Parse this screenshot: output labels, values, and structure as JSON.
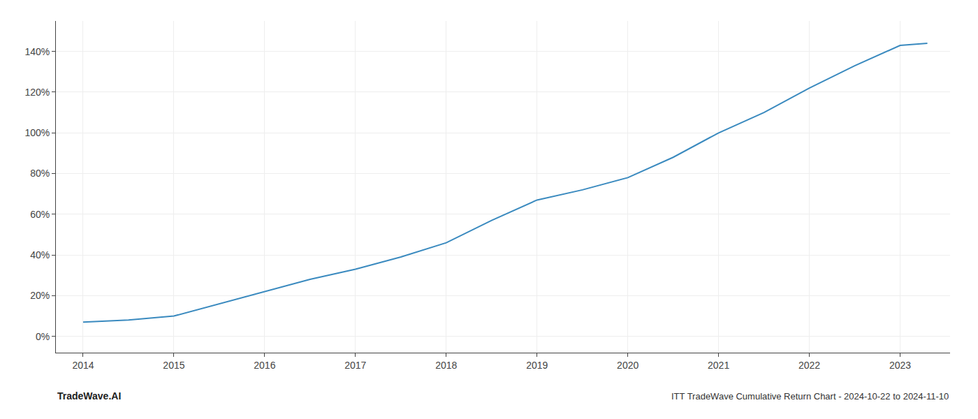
{
  "chart_data": {
    "type": "line",
    "title": "ITT TradeWave Cumulative Return Chart - 2024-10-22 to 2024-11-10",
    "annotations": [
      "TradeWave.AI"
    ],
    "x": [
      2014,
      2014.5,
      2015.0,
      2015.5,
      2016.0,
      2016.5,
      2017.0,
      2017.5,
      2018.0,
      2018.5,
      2019.0,
      2019.5,
      2020.0,
      2020.5,
      2021.0,
      2021.5,
      2022.0,
      2022.5,
      2023.0,
      2023.3
    ],
    "values": [
      7,
      8,
      10,
      16,
      22,
      28,
      33,
      39,
      46,
      57,
      67,
      72,
      78,
      88,
      100,
      110,
      122,
      133,
      143,
      144
    ],
    "color": "#3a8abf",
    "xlim": [
      2013.7,
      2023.55
    ],
    "ylim": [
      -8,
      155
    ],
    "xticks": [
      2014,
      2015,
      2016,
      2017,
      2018,
      2019,
      2020,
      2021,
      2022,
      2023
    ],
    "yticks": [
      {
        "value": 0,
        "label": "0%"
      },
      {
        "value": 20,
        "label": "20%"
      },
      {
        "value": 40,
        "label": "40%"
      },
      {
        "value": 60,
        "label": "60%"
      },
      {
        "value": 80,
        "label": "80%"
      },
      {
        "value": 100,
        "label": "100%"
      },
      {
        "value": 120,
        "label": "120%"
      },
      {
        "value": 140,
        "label": "140%"
      }
    ],
    "grid": true
  }
}
